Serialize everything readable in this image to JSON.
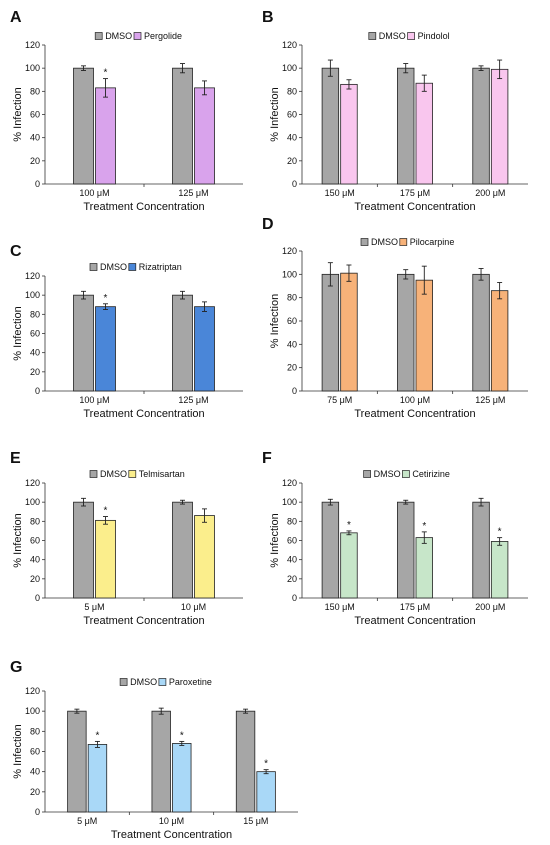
{
  "figure": {
    "background": "#ffffff",
    "dmso_color": "#a6a6a6",
    "bar_stroke": "#222222"
  },
  "chart_data": [
    {
      "panel": "A",
      "type": "bar",
      "xlabel": "Treatment Concentration",
      "ylabel": "% Infection",
      "ylim": [
        0,
        120
      ],
      "yticks": [
        0,
        20,
        40,
        60,
        80,
        100,
        120
      ],
      "categories": [
        "100 μM",
        "125 μM"
      ],
      "series": [
        {
          "name": "DMSO",
          "color": "#a6a6a6",
          "values": [
            100,
            100
          ],
          "errors": [
            2,
            4
          ],
          "significant": [
            false,
            false
          ]
        },
        {
          "name": "Pergolide",
          "color": "#d9a3ec",
          "values": [
            83,
            83
          ],
          "errors": [
            8,
            6
          ],
          "significant": [
            true,
            false
          ]
        }
      ],
      "legend": "top-center"
    },
    {
      "panel": "B",
      "type": "bar",
      "xlabel": "Treatment Concentration",
      "ylabel": "% Infection",
      "ylim": [
        0,
        120
      ],
      "yticks": [
        0,
        20,
        40,
        60,
        80,
        100,
        120
      ],
      "categories": [
        "150 μM",
        "175 μM",
        "200 μM"
      ],
      "series": [
        {
          "name": "DMSO",
          "color": "#a6a6a6",
          "values": [
            100,
            100,
            100
          ],
          "errors": [
            7,
            4,
            2
          ],
          "significant": [
            false,
            false,
            false
          ]
        },
        {
          "name": "Pindolol",
          "color": "#f9c6ee",
          "values": [
            86,
            87,
            99
          ],
          "errors": [
            4,
            7,
            8
          ],
          "significant": [
            false,
            false,
            false
          ]
        }
      ],
      "legend": "top-center"
    },
    {
      "panel": "C",
      "type": "bar",
      "xlabel": "Treatment Concentration",
      "ylabel": "% Infection",
      "ylim": [
        0,
        120
      ],
      "yticks": [
        0,
        20,
        40,
        60,
        80,
        100,
        120
      ],
      "categories": [
        "100 μM",
        "125 μM"
      ],
      "series": [
        {
          "name": "DMSO",
          "color": "#a6a6a6",
          "values": [
            100,
            100
          ],
          "errors": [
            4,
            4
          ],
          "significant": [
            false,
            false
          ]
        },
        {
          "name": "Rizatriptan",
          "color": "#4a86d8",
          "values": [
            88,
            88
          ],
          "errors": [
            3,
            5
          ],
          "significant": [
            true,
            false
          ]
        }
      ],
      "legend": "top-center"
    },
    {
      "panel": "D",
      "type": "bar",
      "xlabel": "Treatment Concentration",
      "ylabel": "% Infection",
      "ylim": [
        0,
        120
      ],
      "yticks": [
        0,
        20,
        40,
        60,
        80,
        100,
        120
      ],
      "categories": [
        "75 μM",
        "100 μM",
        "125 μM"
      ],
      "series": [
        {
          "name": "DMSO",
          "color": "#a6a6a6",
          "values": [
            100,
            100,
            100
          ],
          "errors": [
            10,
            4,
            5
          ],
          "significant": [
            false,
            false,
            false
          ]
        },
        {
          "name": "Pilocarpine",
          "color": "#f7b279",
          "values": [
            101,
            95,
            86
          ],
          "errors": [
            7,
            12,
            7
          ],
          "significant": [
            false,
            false,
            false
          ]
        }
      ],
      "legend": "top-center"
    },
    {
      "panel": "E",
      "type": "bar",
      "xlabel": "Treatment Concentration",
      "ylabel": "% Infection",
      "ylim": [
        0,
        120
      ],
      "yticks": [
        0,
        20,
        40,
        60,
        80,
        100,
        120
      ],
      "categories": [
        "5 μM",
        "10 μM"
      ],
      "series": [
        {
          "name": "DMSO",
          "color": "#a6a6a6",
          "values": [
            100,
            100
          ],
          "errors": [
            4,
            2
          ],
          "significant": [
            false,
            false
          ]
        },
        {
          "name": "Telmisartan",
          "color": "#fbee8c",
          "values": [
            81,
            86
          ],
          "errors": [
            4,
            7
          ],
          "significant": [
            true,
            false
          ]
        }
      ],
      "legend": "top-center"
    },
    {
      "panel": "F",
      "type": "bar",
      "xlabel": "Treatment Concentration",
      "ylabel": "% Infection",
      "ylim": [
        0,
        120
      ],
      "yticks": [
        0,
        20,
        40,
        60,
        80,
        100,
        120
      ],
      "categories": [
        "150 μM",
        "175 μM",
        "200 μM"
      ],
      "series": [
        {
          "name": "DMSO",
          "color": "#a6a6a6",
          "values": [
            100,
            100,
            100
          ],
          "errors": [
            3,
            2,
            4
          ],
          "significant": [
            false,
            false,
            false
          ]
        },
        {
          "name": "Cetirizine",
          "color": "#c7e6c9",
          "values": [
            68,
            63,
            59
          ],
          "errors": [
            2,
            6,
            4
          ],
          "significant": [
            true,
            true,
            true
          ]
        }
      ],
      "legend": "top-center"
    },
    {
      "panel": "G",
      "type": "bar",
      "xlabel": "Treatment Concentration",
      "ylabel": "% Infection",
      "ylim": [
        0,
        120
      ],
      "yticks": [
        0,
        20,
        40,
        60,
        80,
        100,
        120
      ],
      "categories": [
        "5 μM",
        "10 μM",
        "15 μM"
      ],
      "series": [
        {
          "name": "DMSO",
          "color": "#a6a6a6",
          "values": [
            100,
            100,
            100
          ],
          "errors": [
            2,
            3,
            2
          ],
          "significant": [
            false,
            false,
            false
          ]
        },
        {
          "name": "Paroxetine",
          "color": "#a9d8f7",
          "values": [
            67,
            68,
            40
          ],
          "errors": [
            3,
            2,
            2
          ],
          "significant": [
            true,
            true,
            true
          ]
        }
      ],
      "legend": "top-center"
    }
  ]
}
